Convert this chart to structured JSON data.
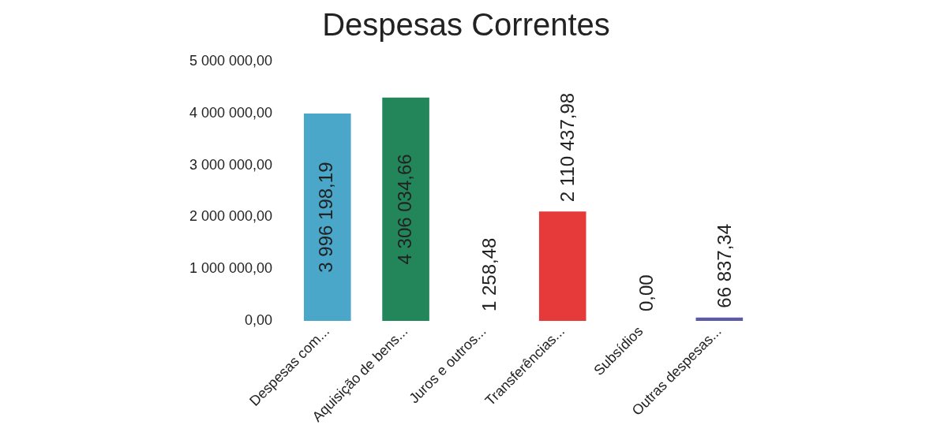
{
  "chart_data": {
    "type": "bar",
    "title": "Despesas Correntes",
    "categories": [
      "Despesas com...",
      "Aquisição de bens...",
      "Juros e outros...",
      "Transferências...",
      "Subsídios",
      "Outras despesas..."
    ],
    "values": [
      3996198.19,
      4306034.66,
      1258.48,
      2110437.98,
      0,
      66837.34
    ],
    "colors": [
      "#4aa7c9",
      "#23865a",
      "#2aa37a",
      "#e5393a",
      "#3a3a3a",
      "#5c5aa8"
    ],
    "value_labels": [
      "3 996 198,19",
      "4 306 034,66",
      "1 258,48",
      "2 110 437,98",
      "0,00",
      "66 837,34"
    ],
    "ylim": [
      0,
      5000000
    ],
    "yticks": [
      {
        "value": 0,
        "label": "0,00"
      },
      {
        "value": 1000000,
        "label": "1 000 000,00"
      },
      {
        "value": 2000000,
        "label": "2 000 000,00"
      },
      {
        "value": 3000000,
        "label": "3 000 000,00"
      },
      {
        "value": 4000000,
        "label": "4 000 000,00"
      },
      {
        "value": 5000000,
        "label": "5 000 000,00"
      }
    ],
    "grid": false,
    "legend": false
  }
}
